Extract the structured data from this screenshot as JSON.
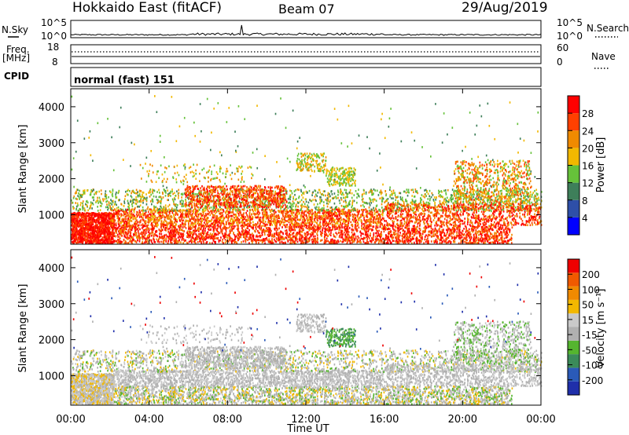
{
  "header": {
    "title": "Hokkaido East (fitACF)",
    "beam": "Beam 07",
    "date": "29/Aug/2019"
  },
  "strip_labels": {
    "nsky": "N.Sky",
    "nsearch": "N.Search",
    "freq_line1": "Freq.",
    "freq_line2": "[MHz]",
    "nave": "Nave",
    "cpid": "CPID",
    "cpid_value": "normal (fast) 151",
    "nsky_ticks": [
      "10^5",
      "10^0"
    ],
    "nsearch_ticks": [
      "10^5",
      "10^0"
    ],
    "freq_ticks": [
      "18",
      "8"
    ],
    "nave_ticks": [
      "60",
      "0"
    ]
  },
  "colors": {
    "power_scale": [
      "#0000ff",
      "#2e4fa8",
      "#3e7f5a",
      "#66c23a",
      "#f2b800",
      "#f08a00",
      "#ff4000",
      "#ff0000"
    ],
    "velocity_scale": [
      "#1f2faa",
      "#2a5ab8",
      "#3b8b5a",
      "#55b52f",
      "#b0b0b0",
      "#c9c9c9",
      "#f2b800",
      "#f08a00",
      "#f05a00",
      "#ee0000"
    ]
  },
  "chart_data": [
    {
      "type": "heatmap",
      "title": "",
      "xlabel": "Time UT",
      "ylabel": "Slant Range [km]",
      "xlim": [
        0,
        24
      ],
      "ylim": [
        180,
        4500
      ],
      "xticks": [
        "00:00",
        "04:00",
        "08:00",
        "12:00",
        "16:00",
        "20:00",
        "00:00"
      ],
      "yticks": [
        "1000",
        "2000",
        "3000",
        "4000"
      ],
      "colorbar": {
        "label": "Power [dB]",
        "ticks": [
          "28",
          "24",
          "20",
          "16",
          "12",
          "8",
          "4"
        ],
        "range": [
          0,
          32
        ]
      }
    },
    {
      "type": "heatmap",
      "title": "",
      "xlabel": "Time UT",
      "ylabel": "Slant Range [km]",
      "xlim": [
        0,
        24
      ],
      "ylim": [
        180,
        4500
      ],
      "xticks": [
        "00:00",
        "04:00",
        "08:00",
        "12:00",
        "16:00",
        "20:00",
        "00:00"
      ],
      "yticks": [
        "1000",
        "2000",
        "3000",
        "4000"
      ],
      "colorbar": {
        "label": "Velocity [m s⁻¹]",
        "ticks": [
          "200",
          "100",
          "50",
          "15",
          "-15",
          "-50",
          "-100",
          "-200"
        ]
      }
    }
  ]
}
